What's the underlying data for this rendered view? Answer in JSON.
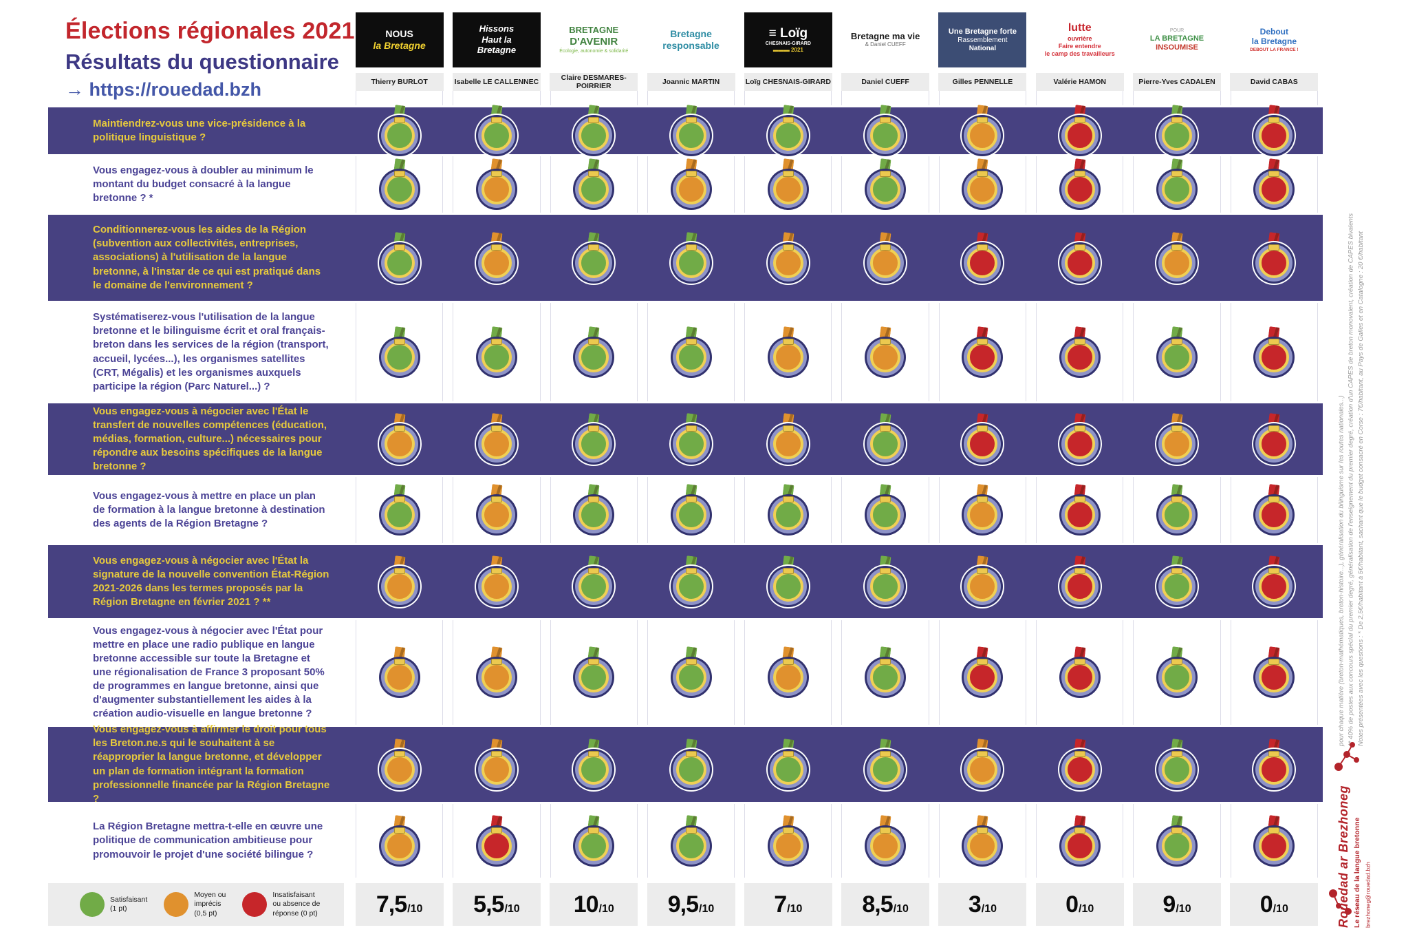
{
  "header": {
    "title": "Élections régionales 2021",
    "subtitle": "Résultats du questionnaire",
    "url": "→ https://rouedad.bzh"
  },
  "colors": {
    "green": "#71ab47",
    "orange": "#e0912e",
    "red": "#c6262a",
    "purple_band": "#474181",
    "question_on_purple": "#e6c93d",
    "question_on_white": "#4c4496",
    "title_red": "#c2262c",
    "brand_red": "#b3242b"
  },
  "candidates": [
    {
      "name": "Thierry BURLOT",
      "logo": {
        "bg": "#0d0d0d",
        "lines": [
          {
            "text": "NOUS",
            "color": "#ffffff",
            "size": 14,
            "bold": true
          },
          {
            "text": "la Bretagne",
            "color": "#f2d230",
            "size": 14,
            "bold": true,
            "italic": true
          }
        ]
      }
    },
    {
      "name": "Isabelle LE CALLENNEC",
      "logo": {
        "bg": "#0d0d0d",
        "lines": [
          {
            "text": "Hissons",
            "color": "#ffffff",
            "size": 13,
            "bold": true,
            "italic": true
          },
          {
            "text": "Haut la",
            "color": "#ffffff",
            "size": 13,
            "bold": true,
            "italic": true
          },
          {
            "text": "Bretagne",
            "color": "#ffffff",
            "size": 13,
            "bold": true,
            "italic": true
          }
        ]
      }
    },
    {
      "name": "Claire DESMARES-POIRRIER",
      "logo": {
        "bg": "#ffffff",
        "lines": [
          {
            "text": "BRETAGNE",
            "color": "#40823f",
            "size": 13,
            "bold": true
          },
          {
            "text": "D'AVENIR",
            "color": "#40823f",
            "size": 15,
            "bold": true
          },
          {
            "text": "Écologie, autonomie & solidarité",
            "color": "#7cb747",
            "size": 7
          }
        ]
      }
    },
    {
      "name": "Joannic MARTIN",
      "logo": {
        "bg": "#ffffff",
        "lines": [
          {
            "text": "Bretagne",
            "color": "#2f8da4",
            "size": 14,
            "bold": true
          },
          {
            "text": "responsable",
            "color": "#2f8da4",
            "size": 14,
            "bold": true
          }
        ]
      }
    },
    {
      "name": "Loïg CHESNAIS-GIRARD",
      "logo": {
        "bg": "#0d0d0d",
        "lines": [
          {
            "text": "≡ Loïg",
            "color": "#ffffff",
            "size": 19,
            "bold": true
          },
          {
            "text": "CHESNAIS-GIRARD",
            "color": "#ffffff",
            "size": 7,
            "bold": true
          },
          {
            "text": "▬▬▬ 2021",
            "color": "#e8c832",
            "size": 8,
            "bold": true
          }
        ]
      }
    },
    {
      "name": "Daniel CUEFF",
      "logo": {
        "bg": "#ffffff",
        "lines": [
          {
            "text": "Bretagne ma vie",
            "color": "#1c1c1c",
            "size": 13,
            "bold": true
          },
          {
            "text": "& Daniel CUEFF",
            "color": "#666666",
            "size": 8
          }
        ]
      }
    },
    {
      "name": "Gilles PENNELLE",
      "logo": {
        "bg": "#3c4d74",
        "lines": [
          {
            "text": "Une Bretagne forte",
            "color": "#ffffff",
            "size": 11,
            "bold": true
          },
          {
            "text": "Rassemblement",
            "color": "#ffffff",
            "size": 10
          },
          {
            "text": "National",
            "color": "#ffffff",
            "size": 10,
            "bold": true
          }
        ]
      }
    },
    {
      "name": "Valérie HAMON",
      "logo": {
        "bg": "#ffffff",
        "lines": [
          {
            "text": "lutte",
            "color": "#c7232b",
            "size": 16,
            "bold": true
          },
          {
            "text": "ouvrière",
            "color": "#c7232b",
            "size": 9,
            "bold": true
          },
          {
            "text": "Faire entendre",
            "color": "#d4323b",
            "size": 9,
            "bold": true
          },
          {
            "text": "le camp des travailleurs",
            "color": "#d4323b",
            "size": 9,
            "bold": true
          }
        ]
      }
    },
    {
      "name": "Pierre-Yves CADALEN",
      "logo": {
        "bg": "#ffffff",
        "lines": [
          {
            "text": "POUR",
            "color": "#9a9a9a",
            "size": 7
          },
          {
            "text": "LA BRETAGNE",
            "color": "#3e8f46",
            "size": 11,
            "bold": true
          },
          {
            "text": "INSOUMISE",
            "color": "#c43a2e",
            "size": 11,
            "bold": true
          }
        ]
      }
    },
    {
      "name": "David CABAS",
      "logo": {
        "bg": "#ffffff",
        "lines": [
          {
            "text": "Debout",
            "color": "#2f6fc0",
            "size": 12,
            "bold": true
          },
          {
            "text": "la Bretagne",
            "color": "#2f6fc0",
            "size": 12,
            "bold": true
          },
          {
            "text": "DEBOUT LA FRANCE !",
            "color": "#d0312e",
            "size": 6.5,
            "bold": true
          }
        ]
      }
    }
  ],
  "legend": [
    {
      "key": "green",
      "label": "Satisfaisant\n(1 pt)"
    },
    {
      "key": "orange",
      "label": "Moyen ou\nimprécis\n(0,5 pt)"
    },
    {
      "key": "red",
      "label": "Insatisfaisant\nou absence de\nréponse (0 pt)"
    }
  ],
  "score_suffix": "/10",
  "footnotes": [
    "Notes présentées avec les questions : * De 2,5€/habitant à 5€/habitant, sachant que le budget consacré en Corse : 7€/habitant, au Pays de Galles et en Catalogne : 20 €/habitant",
    "** 40% de postes aux concours spécial du premier degré, généralisation de l'enseignement du premier degré, création d'un CAPES de breton monovalent, création de CAPES bivalents",
    "pour chaque matière (breton-mathématiques, breton-histoire...), généralisation du bilinguisme sur les routes nationales...)"
  ],
  "branding": {
    "name": "Rouedad ar Brezhoneg",
    "tagline": "Le réseau de la langue bretonne",
    "email": "brezhoneg@rouedad.bzh"
  },
  "chart_data": {
    "type": "table",
    "title": "Élections régionales 2021 — Résultats du questionnaire",
    "columns": [
      "Thierry BURLOT",
      "Isabelle LE CALLENNEC",
      "Claire DESMARES-POIRRIER",
      "Joannic MARTIN",
      "Loïg CHESNAIS-GIRARD",
      "Daniel CUEFF",
      "Gilles PENNELLE",
      "Valérie HAMON",
      "Pierre-Yves CADALEN",
      "David CABAS"
    ],
    "rating_scale": {
      "green": 1,
      "orange": 0.5,
      "red": 0
    },
    "questions": [
      "Maintiendrez-vous une vice-présidence à la politique linguistique ?",
      "Vous engagez-vous à doubler au minimum le montant du budget consacré à la langue bretonne ? *",
      "Conditionnerez-vous les aides de la Région (subvention aux collectivités, entreprises, associations) à l'utilisation de la langue bretonne, à l'instar de ce qui est pratiqué dans le domaine de l'environnement ?",
      "Systématiserez-vous l'utilisation de la langue bretonne et le bilinguisme écrit et oral français-breton dans les services de la région (transport, accueil, lycées...), les organismes satellites (CRT, Mégalis) et les organismes auxquels participe la région (Parc Naturel...) ?",
      "Vous engagez-vous à négocier avec l'État le transfert de nouvelles compétences (éducation, médias, formation, culture...) nécessaires pour répondre aux besoins spécifiques de la langue bretonne ?",
      "Vous engagez-vous à mettre en place un plan de formation à la langue bretonne à destination des agents de la Région Bretagne ?",
      "Vous engagez-vous à négocier avec l'État la signature de la nouvelle convention État-Région 2021-2026 dans les termes proposés par la Région Bretagne en février 2021 ? **",
      "Vous engagez-vous à négocier avec l'État pour mettre en place une radio publique en langue bretonne accessible sur toute la Bretagne et une régionalisation de France 3 proposant 50% de programmes en langue bretonne, ainsi que d'augmenter substantiellement les aides à la création audio-visuelle en langue bretonne ?",
      "Vous engagez-vous à affirmer le droit pour tous les Breton.ne.s qui le souhaitent à se réapproprier la langue bretonne, et développer un plan de formation intégrant la formation professionnelle financée par la Région Bretagne ?",
      "La Région Bretagne mettra-t-elle en œuvre une politique de communication ambitieuse pour promouvoir le projet d'une société bilingue ?"
    ],
    "ratings": [
      [
        "green",
        "green",
        "green",
        "green",
        "green",
        "green",
        "orange",
        "red",
        "green",
        "red"
      ],
      [
        "green",
        "orange",
        "green",
        "orange",
        "orange",
        "green",
        "orange",
        "red",
        "green",
        "red"
      ],
      [
        "green",
        "orange",
        "green",
        "green",
        "orange",
        "orange",
        "red",
        "red",
        "orange",
        "red"
      ],
      [
        "green",
        "green",
        "green",
        "green",
        "orange",
        "orange",
        "red",
        "red",
        "green",
        "red"
      ],
      [
        "orange",
        "orange",
        "green",
        "green",
        "orange",
        "green",
        "red",
        "red",
        "orange",
        "red"
      ],
      [
        "green",
        "orange",
        "green",
        "green",
        "green",
        "green",
        "orange",
        "red",
        "green",
        "red"
      ],
      [
        "orange",
        "orange",
        "green",
        "green",
        "green",
        "green",
        "orange",
        "red",
        "green",
        "red"
      ],
      [
        "orange",
        "orange",
        "green",
        "green",
        "orange",
        "green",
        "red",
        "red",
        "green",
        "red"
      ],
      [
        "orange",
        "orange",
        "green",
        "green",
        "green",
        "green",
        "orange",
        "red",
        "green",
        "red"
      ],
      [
        "orange",
        "red",
        "green",
        "green",
        "orange",
        "orange",
        "orange",
        "red",
        "green",
        "red"
      ]
    ],
    "scores": [
      "7,5",
      "5,5",
      "10",
      "9,5",
      "7",
      "8,5",
      "3",
      "0",
      "9",
      "0"
    ],
    "score_max": 10
  }
}
